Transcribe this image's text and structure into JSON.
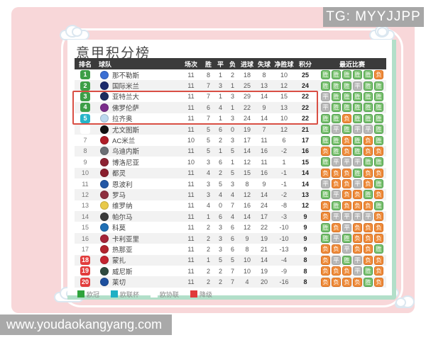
{
  "overlay": {
    "tg_badge": "TG: MYYJJPP",
    "watermark": "www.youdaokangyang.com"
  },
  "title": "意甲积分榜",
  "table": {
    "headers": [
      "排名",
      "球队",
      "场次",
      "胜",
      "平",
      "负",
      "进球",
      "失球",
      "净胜球",
      "积分",
      "最近比赛"
    ],
    "rows": [
      {
        "rank": "1",
        "badge": "green",
        "team": "那不勒斯",
        "logo_color": "#3b6fd4",
        "played": "11",
        "win": "8",
        "draw": "1",
        "loss": "2",
        "gf": "18",
        "ga": "8",
        "gd": "10",
        "pts": "25",
        "recent": [
          "胜",
          "胜",
          "胜",
          "胜",
          "胜",
          "负"
        ]
      },
      {
        "rank": "2",
        "badge": "green",
        "team": "国际米兰",
        "logo_color": "#1b2a6b",
        "played": "11",
        "win": "7",
        "draw": "3",
        "loss": "1",
        "gf": "25",
        "ga": "13",
        "gd": "12",
        "pts": "24",
        "recent": [
          "胜",
          "胜",
          "胜",
          "平",
          "胜",
          "胜"
        ]
      },
      {
        "rank": "3",
        "badge": "green",
        "team": "亚特兰大",
        "logo_color": "#1d2c5e",
        "played": "11",
        "win": "7",
        "draw": "1",
        "loss": "3",
        "gf": "29",
        "ga": "14",
        "gd": "15",
        "pts": "22",
        "recent": [
          "平",
          "胜",
          "胜",
          "胜",
          "胜",
          "胜"
        ]
      },
      {
        "rank": "4",
        "badge": "green",
        "team": "佛罗伦萨",
        "logo_color": "#7b2d8b",
        "played": "11",
        "win": "6",
        "draw": "4",
        "loss": "1",
        "gf": "22",
        "ga": "9",
        "gd": "13",
        "pts": "22",
        "recent": [
          "平",
          "胜",
          "胜",
          "胜",
          "胜",
          "胜"
        ]
      },
      {
        "rank": "5",
        "badge": "cyan",
        "team": "拉齐奥",
        "logo_color": "#bcd9ef",
        "played": "11",
        "win": "7",
        "draw": "1",
        "loss": "3",
        "gf": "24",
        "ga": "14",
        "gd": "10",
        "pts": "22",
        "recent": [
          "胜",
          "胜",
          "负",
          "胜",
          "胜",
          "胜"
        ]
      },
      {
        "rank": "6",
        "badge": "white",
        "team": "尤文图斯",
        "logo_color": "#111111",
        "played": "11",
        "win": "5",
        "draw": "6",
        "loss": "0",
        "gf": "19",
        "ga": "7",
        "gd": "12",
        "pts": "21",
        "recent": [
          "胜",
          "平",
          "胜",
          "平",
          "平",
          "胜"
        ]
      },
      {
        "rank": "7",
        "badge": "none",
        "team": "AC米兰",
        "logo_color": "#b01e28",
        "played": "10",
        "win": "5",
        "draw": "2",
        "loss": "3",
        "gf": "17",
        "ga": "11",
        "gd": "6",
        "pts": "17",
        "recent": [
          "胜",
          "胜",
          "负",
          "胜",
          "负",
          "胜"
        ]
      },
      {
        "rank": "8",
        "badge": "none",
        "team": "乌迪内斯",
        "logo_color": "#6b6f75",
        "played": "11",
        "win": "5",
        "draw": "1",
        "loss": "5",
        "gf": "14",
        "ga": "16",
        "gd": "-2",
        "pts": "16",
        "recent": [
          "负",
          "胜",
          "负",
          "胜",
          "负",
          "负"
        ]
      },
      {
        "rank": "9",
        "badge": "none",
        "team": "博洛尼亚",
        "logo_color": "#8c2232",
        "played": "10",
        "win": "3",
        "draw": "6",
        "loss": "1",
        "gf": "12",
        "ga": "11",
        "gd": "1",
        "pts": "15",
        "recent": [
          "胜",
          "平",
          "平",
          "平",
          "胜",
          "胜"
        ]
      },
      {
        "rank": "10",
        "badge": "none",
        "team": "都灵",
        "logo_color": "#8a1e2d",
        "played": "11",
        "win": "4",
        "draw": "2",
        "loss": "5",
        "gf": "15",
        "ga": "16",
        "gd": "-1",
        "pts": "14",
        "recent": [
          "负",
          "负",
          "负",
          "胜",
          "负",
          "负"
        ]
      },
      {
        "rank": "11",
        "badge": "none",
        "team": "恩波利",
        "logo_color": "#2257a5",
        "played": "11",
        "win": "3",
        "draw": "5",
        "loss": "3",
        "gf": "8",
        "ga": "9",
        "gd": "-1",
        "pts": "14",
        "recent": [
          "平",
          "负",
          "负",
          "平",
          "负",
          "胜"
        ]
      },
      {
        "rank": "12",
        "badge": "none",
        "team": "罗马",
        "logo_color": "#8e2f3f",
        "played": "11",
        "win": "3",
        "draw": "4",
        "loss": "4",
        "gf": "12",
        "ga": "14",
        "gd": "-2",
        "pts": "13",
        "recent": [
          "胜",
          "平",
          "负",
          "负",
          "胜",
          "负"
        ]
      },
      {
        "rank": "13",
        "badge": "none",
        "team": "维罗纳",
        "logo_color": "#e8c94a",
        "played": "11",
        "win": "4",
        "draw": "0",
        "loss": "7",
        "gf": "16",
        "ga": "24",
        "gd": "-8",
        "pts": "12",
        "recent": [
          "负",
          "胜",
          "负",
          "负",
          "负",
          "胜"
        ]
      },
      {
        "rank": "14",
        "badge": "none",
        "team": "帕尔马",
        "logo_color": "#3b3b3b",
        "played": "11",
        "win": "1",
        "draw": "6",
        "loss": "4",
        "gf": "14",
        "ga": "17",
        "gd": "-3",
        "pts": "9",
        "recent": [
          "负",
          "平",
          "平",
          "平",
          "平",
          "负"
        ]
      },
      {
        "rank": "15",
        "badge": "none",
        "team": "科莫",
        "logo_color": "#1f6fb5",
        "played": "11",
        "win": "2",
        "draw": "3",
        "loss": "6",
        "gf": "12",
        "ga": "22",
        "gd": "-10",
        "pts": "9",
        "recent": [
          "胜",
          "负",
          "平",
          "负",
          "负",
          "负"
        ]
      },
      {
        "rank": "16",
        "badge": "none",
        "team": "卡利亚里",
        "logo_color": "#a52438",
        "played": "11",
        "win": "2",
        "draw": "3",
        "loss": "6",
        "gf": "9",
        "ga": "19",
        "gd": "-10",
        "pts": "9",
        "recent": [
          "胜",
          "平",
          "胜",
          "负",
          "负",
          "负"
        ]
      },
      {
        "rank": "17",
        "badge": "none",
        "team": "热那亚",
        "logo_color": "#b2242e",
        "played": "11",
        "win": "2",
        "draw": "3",
        "loss": "6",
        "gf": "8",
        "ga": "21",
        "gd": "-13",
        "pts": "9",
        "recent": [
          "负",
          "负",
          "平",
          "负",
          "负",
          "胜"
        ]
      },
      {
        "rank": "18",
        "badge": "red",
        "team": "蒙扎",
        "logo_color": "#c42430",
        "played": "11",
        "win": "1",
        "draw": "5",
        "loss": "5",
        "gf": "10",
        "ga": "14",
        "gd": "-4",
        "pts": "8",
        "recent": [
          "负",
          "平",
          "胜",
          "平",
          "负",
          "负"
        ]
      },
      {
        "rank": "19",
        "badge": "red",
        "team": "威尼斯",
        "logo_color": "#2e4a3f",
        "played": "11",
        "win": "2",
        "draw": "2",
        "loss": "7",
        "gf": "10",
        "ga": "19",
        "gd": "-9",
        "pts": "8",
        "recent": [
          "负",
          "负",
          "负",
          "平",
          "胜",
          "负"
        ]
      },
      {
        "rank": "20",
        "badge": "red",
        "team": "莱切",
        "logo_color": "#1d4f9e",
        "played": "11",
        "win": "2",
        "draw": "2",
        "loss": "7",
        "gf": "4",
        "ga": "20",
        "gd": "-16",
        "pts": "8",
        "recent": [
          "负",
          "负",
          "负",
          "负",
          "胜",
          "负"
        ]
      }
    ]
  },
  "legend": [
    {
      "label": "欧冠",
      "color": "#2fa33c"
    },
    {
      "label": "欧联杯",
      "color": "#1fb0c4"
    },
    {
      "label": "欧协联",
      "color": "#ffffff"
    },
    {
      "label": "降级",
      "color": "#e03a3a"
    }
  ],
  "colors": {
    "background_pink": "#f8d7d9",
    "header_dark": "#3b3b3b",
    "win_green": "#79c06e",
    "draw_gray": "#b8b8b8",
    "loss_orange": "#ee8c3c",
    "highlight_red": "#d94f44",
    "mint_edge": "#b2dfc9",
    "overlay_gray": "#a9a9a9"
  }
}
